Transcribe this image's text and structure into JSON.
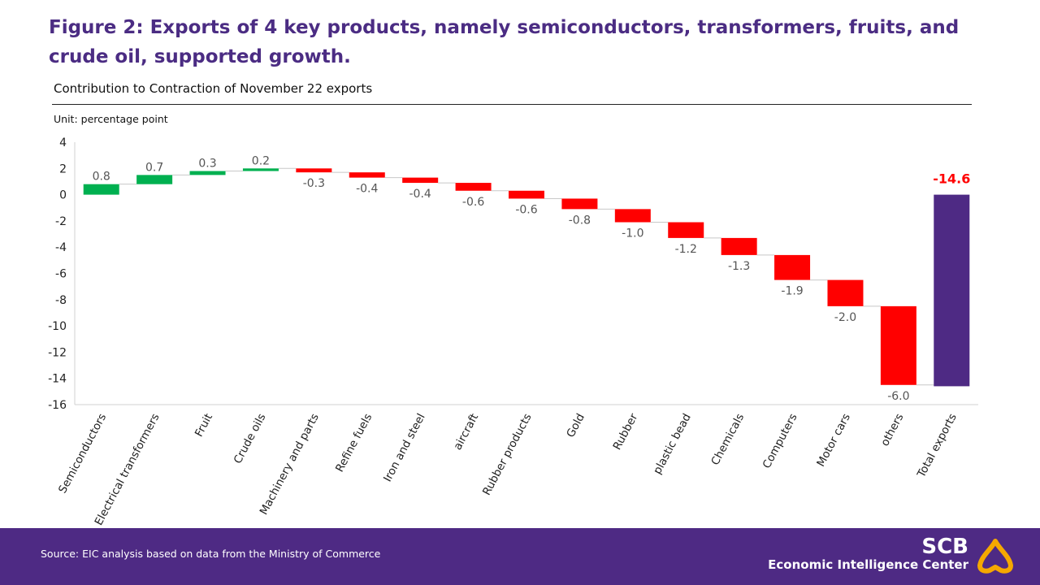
{
  "title": "Figure 2: Exports of 4 key products, namely semiconductors, transformers, fruits, and crude oil, supported growth.",
  "chart_data": {
    "type": "waterfall",
    "title": "Contribution to Contraction of November 22 exports",
    "unit_label": "Unit: percentage  point",
    "categories": [
      "Semiconductors",
      "Electrical transformers",
      "Fruit",
      "Crude oils",
      "Machinery and parts",
      "Refine fuels",
      "Iron and steel",
      "aircraft",
      "Rubber products",
      "Gold",
      "Rubber",
      "plastic bead",
      "Chemicals",
      "Computers",
      "Motor cars",
      "others",
      "Total exports"
    ],
    "values": [
      0.8,
      0.7,
      0.3,
      0.2,
      -0.3,
      -0.4,
      -0.4,
      -0.6,
      -0.6,
      -0.8,
      -1.0,
      -1.2,
      -1.3,
      -1.9,
      -2.0,
      -6.0,
      -14.6
    ],
    "labels": [
      "0.8",
      "0.7",
      "0.3",
      "0.2",
      "-0.3",
      "-0.4",
      "-0.4",
      "-0.6",
      "-0.6",
      "-0.8",
      "-1.0",
      "-1.2",
      "-1.3",
      "-1.9",
      "-2.0",
      "-6.0",
      "-14.6"
    ],
    "total_index": 16,
    "ylim": [
      -16,
      4
    ],
    "yticks": [
      "4",
      "2",
      "0",
      "-2",
      "-4",
      "-6",
      "-8",
      "-10",
      "-12",
      "-14",
      "-16"
    ],
    "grid": false,
    "colors": {
      "increase": "#00b050",
      "decrease": "#ff0000",
      "total": "#4e2a84",
      "total_label": "#ff0000",
      "connector": "#c8c8c8"
    }
  },
  "footer": {
    "source": "Source: EIC analysis based on data from the Ministry of Commerce",
    "logo_text": "SCB",
    "logo_subtext": "Economic Intelligence Center"
  }
}
